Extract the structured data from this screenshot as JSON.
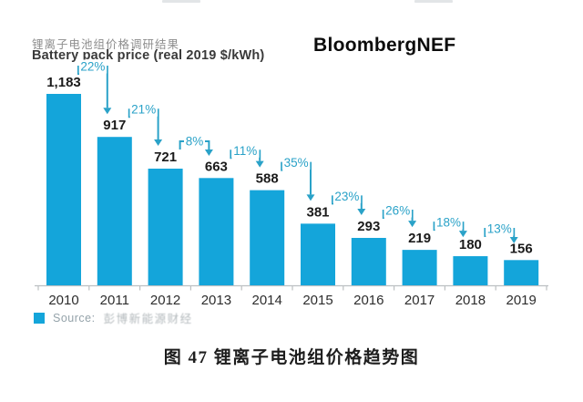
{
  "header": {
    "title_zh": "锂离子电池组价格调研结果",
    "title_en": "Battery pack price (real 2019 $/kWh)",
    "brand": "BloombergNEF"
  },
  "source": {
    "label": "Source:",
    "agency": "彭博新能源财经"
  },
  "caption": "图 47  锂离子电池组价格趋势图",
  "colors": {
    "bar": "#14a5da",
    "annotation": "#2aa2c8",
    "value_label": "#1b1b1b",
    "year_label": "#2d2d2d",
    "axis": "#bcc0c2"
  },
  "chart_data": {
    "type": "bar",
    "title": "Battery pack price (real 2019 $/kWh)",
    "title_zh": "锂离子电池组价格调研结果",
    "xlabel": "",
    "ylabel": "",
    "grid": false,
    "legend_position": "none",
    "ylim": [
      0,
      1250
    ],
    "categories": [
      "2010",
      "2011",
      "2012",
      "2013",
      "2014",
      "2015",
      "2016",
      "2017",
      "2018",
      "2019"
    ],
    "values": [
      1183,
      917,
      721,
      663,
      588,
      381,
      293,
      219,
      180,
      156
    ],
    "value_labels": [
      "1,183",
      "917",
      "721",
      "663",
      "588",
      "381",
      "293",
      "219",
      "180",
      "156"
    ],
    "pct_decline_labels": [
      "22%",
      "21%",
      "8%",
      "11%",
      "35%",
      "23%",
      "26%",
      "18%",
      "13%"
    ],
    "annotation_style": "bracket-with-down-arrow-to-next-bar"
  }
}
